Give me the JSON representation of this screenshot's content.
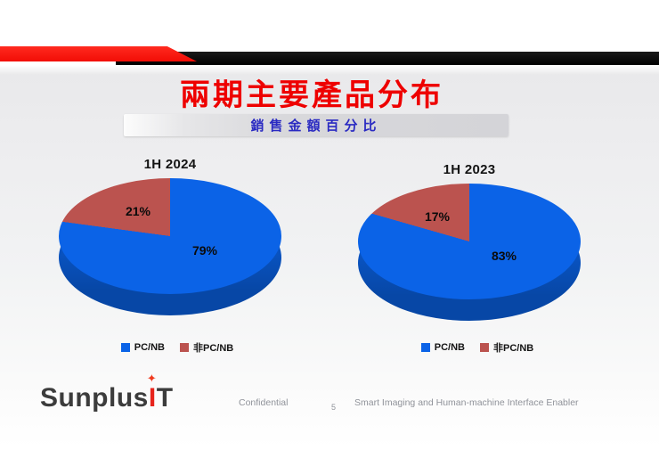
{
  "slide": {
    "title": "兩期主要產品分布",
    "subtitle": "銷售金額百分比",
    "page_number": "5",
    "footer": {
      "confidential": "Confidential",
      "tagline": "Smart Imaging and Human-machine Interface Enabler"
    },
    "logo": {
      "part1": "Sunplus",
      "accent": "I",
      "part2": "T",
      "spark": "✦"
    }
  },
  "colors": {
    "title_red": "#ee0000",
    "subtitle_blue": "#2a2ac2",
    "banner_red": "#f2120c",
    "banner_black": "#0a0a0a",
    "pie_blue": "#0b63e7",
    "pie_blue_side": "#0a55c8",
    "pie_red": "#bb534f",
    "background_gray": "#ededef"
  },
  "chart_data": [
    {
      "type": "pie",
      "title": "1H 2024",
      "labels": [
        "PC/NB",
        "非PC/NB"
      ],
      "values": [
        79,
        21
      ],
      "unit": "%",
      "colors": [
        "#0b63e7",
        "#bb534f"
      ],
      "effect": "3d",
      "start_angle": "top",
      "legend_position": "bottom"
    },
    {
      "type": "pie",
      "title": "1H 2023",
      "labels": [
        "PC/NB",
        "非PC/NB"
      ],
      "values": [
        83,
        17
      ],
      "unit": "%",
      "colors": [
        "#0b63e7",
        "#bb534f"
      ],
      "effect": "3d",
      "start_angle": "top",
      "legend_position": "bottom"
    }
  ]
}
